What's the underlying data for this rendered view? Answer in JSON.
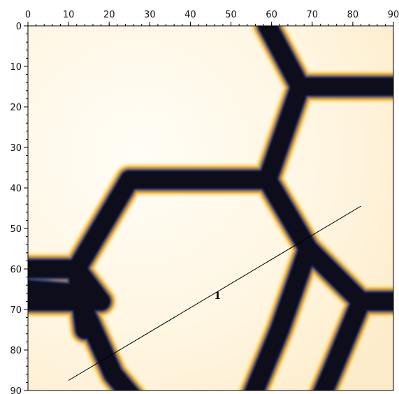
{
  "image": {
    "colormap": [
      "#07071a",
      "#1f2550",
      "#4a5080",
      "#a8883c",
      "#f0b040",
      "#fde7a6",
      "#fff9e8"
    ]
  },
  "axes": {
    "x_ticks": [
      "0",
      "10",
      "20",
      "30",
      "40",
      "50",
      "60",
      "70",
      "80",
      "90"
    ],
    "y_ticks": [
      "0",
      "10",
      "20",
      "30",
      "40",
      "50",
      "60",
      "70",
      "80",
      "90"
    ],
    "range": [
      0,
      90
    ]
  },
  "profile_line": {
    "label": "1",
    "start": [
      10,
      87.5
    ],
    "end": [
      82,
      44.5
    ]
  }
}
